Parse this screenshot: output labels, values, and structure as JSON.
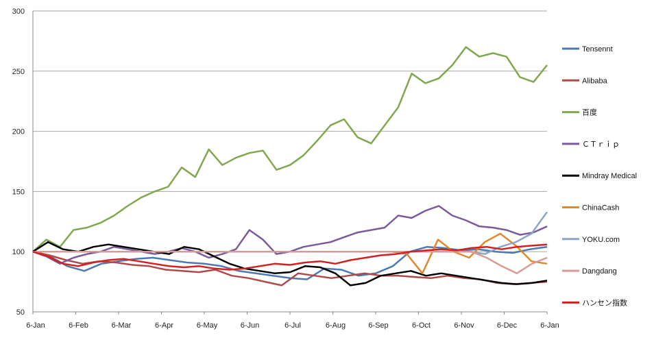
{
  "chart_data": {
    "type": "line",
    "title": "",
    "xlabel": "",
    "ylabel": "",
    "ylim": [
      50,
      300
    ],
    "y_ticks": [
      "300",
      "250",
      "200",
      "150",
      "100",
      "50"
    ],
    "x_ticks": [
      "6-Jan",
      "6-Feb",
      "6-Mar",
      "6-Apr",
      "6-May",
      "6-Jun",
      "6-Jul",
      "6-Aug",
      "6-Sep",
      "6-Oct",
      "6-Nov",
      "6-Dec",
      "6-Jan"
    ],
    "grid": "horizontal",
    "legend_position": "right",
    "series": [
      {
        "name": "Tensennt",
        "color": "#4a7ab0",
        "values": [
          100,
          96,
          88,
          84,
          90,
          92,
          94,
          95,
          93,
          91,
          90,
          88,
          84,
          82,
          80,
          78,
          77,
          86,
          85,
          80,
          82,
          88,
          100,
          104,
          103,
          101,
          102,
          100,
          99,
          102,
          104
        ]
      },
      {
        "name": "Alibaba",
        "color": "#b04a48",
        "values": [
          100,
          97,
          93,
          90,
          92,
          91,
          89,
          88,
          85,
          84,
          83,
          85,
          80,
          78,
          75,
          72,
          82,
          80,
          78,
          80,
          82,
          80,
          80,
          79,
          78,
          80,
          78,
          77,
          74,
          73,
          74,
          75
        ]
      },
      {
        "name": "百度",
        "color": "#7fa84e",
        "values": [
          100,
          110,
          104,
          118,
          120,
          124,
          130,
          138,
          145,
          150,
          154,
          170,
          162,
          185,
          172,
          178,
          182,
          184,
          168,
          172,
          180,
          192,
          205,
          210,
          195,
          190,
          205,
          220,
          248,
          240,
          244,
          255,
          270,
          262,
          265,
          262,
          245,
          241,
          255
        ]
      },
      {
        "name": "ＣＴｒｉｐ",
        "color": "#7a5a9a",
        "values": [
          100,
          96,
          90,
          95,
          98,
          100,
          104,
          102,
          100,
          98,
          100,
          103,
          100,
          95,
          98,
          102,
          118,
          110,
          98,
          100,
          104,
          106,
          108,
          112,
          116,
          118,
          120,
          130,
          128,
          134,
          138,
          130,
          126,
          121,
          120,
          118,
          114,
          116,
          121
        ]
      },
      {
        "name": "Mindray Medical",
        "color": "#000000",
        "values": [
          100,
          108,
          102,
          100,
          104,
          106,
          104,
          102,
          100,
          98,
          104,
          102,
          96,
          90,
          86,
          84,
          82,
          83,
          88,
          87,
          82,
          72,
          74,
          80,
          82,
          84,
          80,
          82,
          80,
          78,
          76,
          74,
          73,
          74,
          76
        ]
      },
      {
        "name": "ChinaCash",
        "color": "#e0882e",
        "values": [
          100,
          100,
          100,
          100,
          100,
          100,
          100,
          100,
          100,
          100,
          100,
          100,
          100,
          100,
          100,
          100,
          100,
          100,
          100,
          100,
          100,
          100,
          100,
          100,
          98,
          82,
          110,
          100,
          95,
          108,
          115,
          105,
          92,
          90
        ]
      },
      {
        "name": "YOKU.com",
        "color": "#8aa4cc",
        "values": [
          100,
          100,
          100,
          100,
          100,
          100,
          100,
          100,
          100,
          100,
          100,
          100,
          100,
          100,
          100,
          100,
          100,
          100,
          100,
          100,
          100,
          100,
          100,
          100,
          100,
          100,
          100,
          100,
          100,
          98,
          104,
          108,
          115,
          133
        ]
      },
      {
        "name": "Dangdang",
        "color": "#d89a94",
        "values": [
          100,
          100,
          100,
          100,
          100,
          100,
          100,
          100,
          100,
          100,
          100,
          100,
          100,
          100,
          100,
          100,
          100,
          100,
          100,
          100,
          100,
          100,
          100,
          100,
          100,
          100,
          100,
          100,
          100,
          100,
          95,
          88,
          82,
          90,
          95
        ]
      },
      {
        "name": "ハンセン指数",
        "color": "#d42020",
        "values": [
          100,
          96,
          90,
          88,
          91,
          93,
          94,
          92,
          90,
          88,
          87,
          88,
          86,
          85,
          86,
          88,
          90,
          89,
          91,
          92,
          90,
          93,
          95,
          97,
          98,
          100,
          101,
          102,
          101,
          103,
          104,
          102,
          104,
          105,
          106
        ]
      }
    ]
  }
}
